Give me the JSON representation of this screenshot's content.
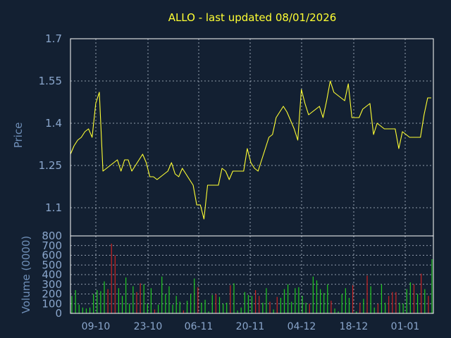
{
  "chart_data": {
    "type": "line",
    "title": "ALLO - last updated 08/01/2026",
    "colors": {
      "background": "#132032",
      "price_line": "#ffff33",
      "volume_up": "#22cc22",
      "volume_down": "#cc2222",
      "grid": "#b9c4d4",
      "text": "#8aa6cc"
    },
    "x_tick_labels": [
      "09-10",
      "23-10",
      "06-11",
      "20-11",
      "04-12",
      "18-12",
      "01-01"
    ],
    "price_panel": {
      "ylabel": "Price",
      "ylim": [
        1.0,
        1.7
      ],
      "yticks": [
        1.1,
        1.25,
        1.4,
        1.55,
        1.7
      ],
      "ytick_labels": [
        "1.1",
        "1.25",
        "1.4",
        "1.55",
        "1.7"
      ],
      "values": [
        1.29,
        1.32,
        1.34,
        1.35,
        1.37,
        1.38,
        1.35,
        1.47,
        1.51,
        1.23,
        1.24,
        1.25,
        1.26,
        1.27,
        1.23,
        1.27,
        1.27,
        1.23,
        1.25,
        1.27,
        1.29,
        1.26,
        1.21,
        1.21,
        1.2,
        1.21,
        1.22,
        1.23,
        1.26,
        1.22,
        1.21,
        1.24,
        1.22,
        1.2,
        1.18,
        1.11,
        1.11,
        1.06,
        1.18,
        1.18,
        1.18,
        1.18,
        1.24,
        1.23,
        1.2,
        1.23,
        1.23,
        1.23,
        1.23,
        1.31,
        1.26,
        1.24,
        1.23,
        1.27,
        1.31,
        1.35,
        1.36,
        1.42,
        1.44,
        1.46,
        1.44,
        1.41,
        1.38,
        1.34,
        1.52,
        1.47,
        1.43,
        1.44,
        1.45,
        1.46,
        1.42,
        1.48,
        1.55,
        1.51,
        1.5,
        1.49,
        1.48,
        1.54,
        1.42,
        1.42,
        1.42,
        1.45,
        1.46,
        1.47,
        1.36,
        1.4,
        1.39,
        1.38,
        1.38,
        1.38,
        1.38,
        1.31,
        1.37,
        1.36,
        1.35,
        1.35,
        1.35,
        1.35,
        1.43,
        1.49,
        1.49
      ]
    },
    "volume_panel": {
      "ylabel": "Volume (0000)",
      "ylim": [
        0,
        800
      ],
      "yticks": [
        0,
        100,
        200,
        300,
        400,
        500,
        600,
        700,
        800
      ],
      "ytick_labels": [
        "0",
        "100",
        "200",
        "300",
        "400",
        "500",
        "600",
        "700",
        "800"
      ],
      "values": [
        180,
        240,
        90,
        60,
        50,
        60,
        200,
        240,
        230,
        330,
        250,
        720,
        600,
        260,
        180,
        370,
        100,
        280,
        220,
        310,
        300,
        100,
        260,
        40,
        90,
        380,
        200,
        280,
        90,
        180,
        120,
        30,
        130,
        200,
        360,
        270,
        110,
        140,
        20,
        190,
        200,
        170,
        100,
        110,
        290,
        310,
        30,
        60,
        220,
        190,
        180,
        240,
        180,
        110,
        260,
        120,
        40,
        170,
        160,
        250,
        300,
        120,
        260,
        270,
        180,
        110,
        100,
        380,
        340,
        250,
        210,
        300,
        130,
        50,
        20,
        200,
        260,
        160,
        290,
        20,
        110,
        150,
        390,
        280,
        60,
        100,
        300,
        110,
        180,
        220,
        220,
        110,
        100,
        250,
        320,
        300,
        200,
        410,
        250,
        180,
        560
      ]
    },
    "volume_down_days": [
      10,
      11,
      12,
      18,
      19,
      23,
      31,
      35,
      40,
      44,
      51,
      52,
      55,
      57,
      66,
      72,
      78,
      80,
      82,
      85,
      88,
      89,
      90,
      95,
      97,
      99
    ]
  }
}
